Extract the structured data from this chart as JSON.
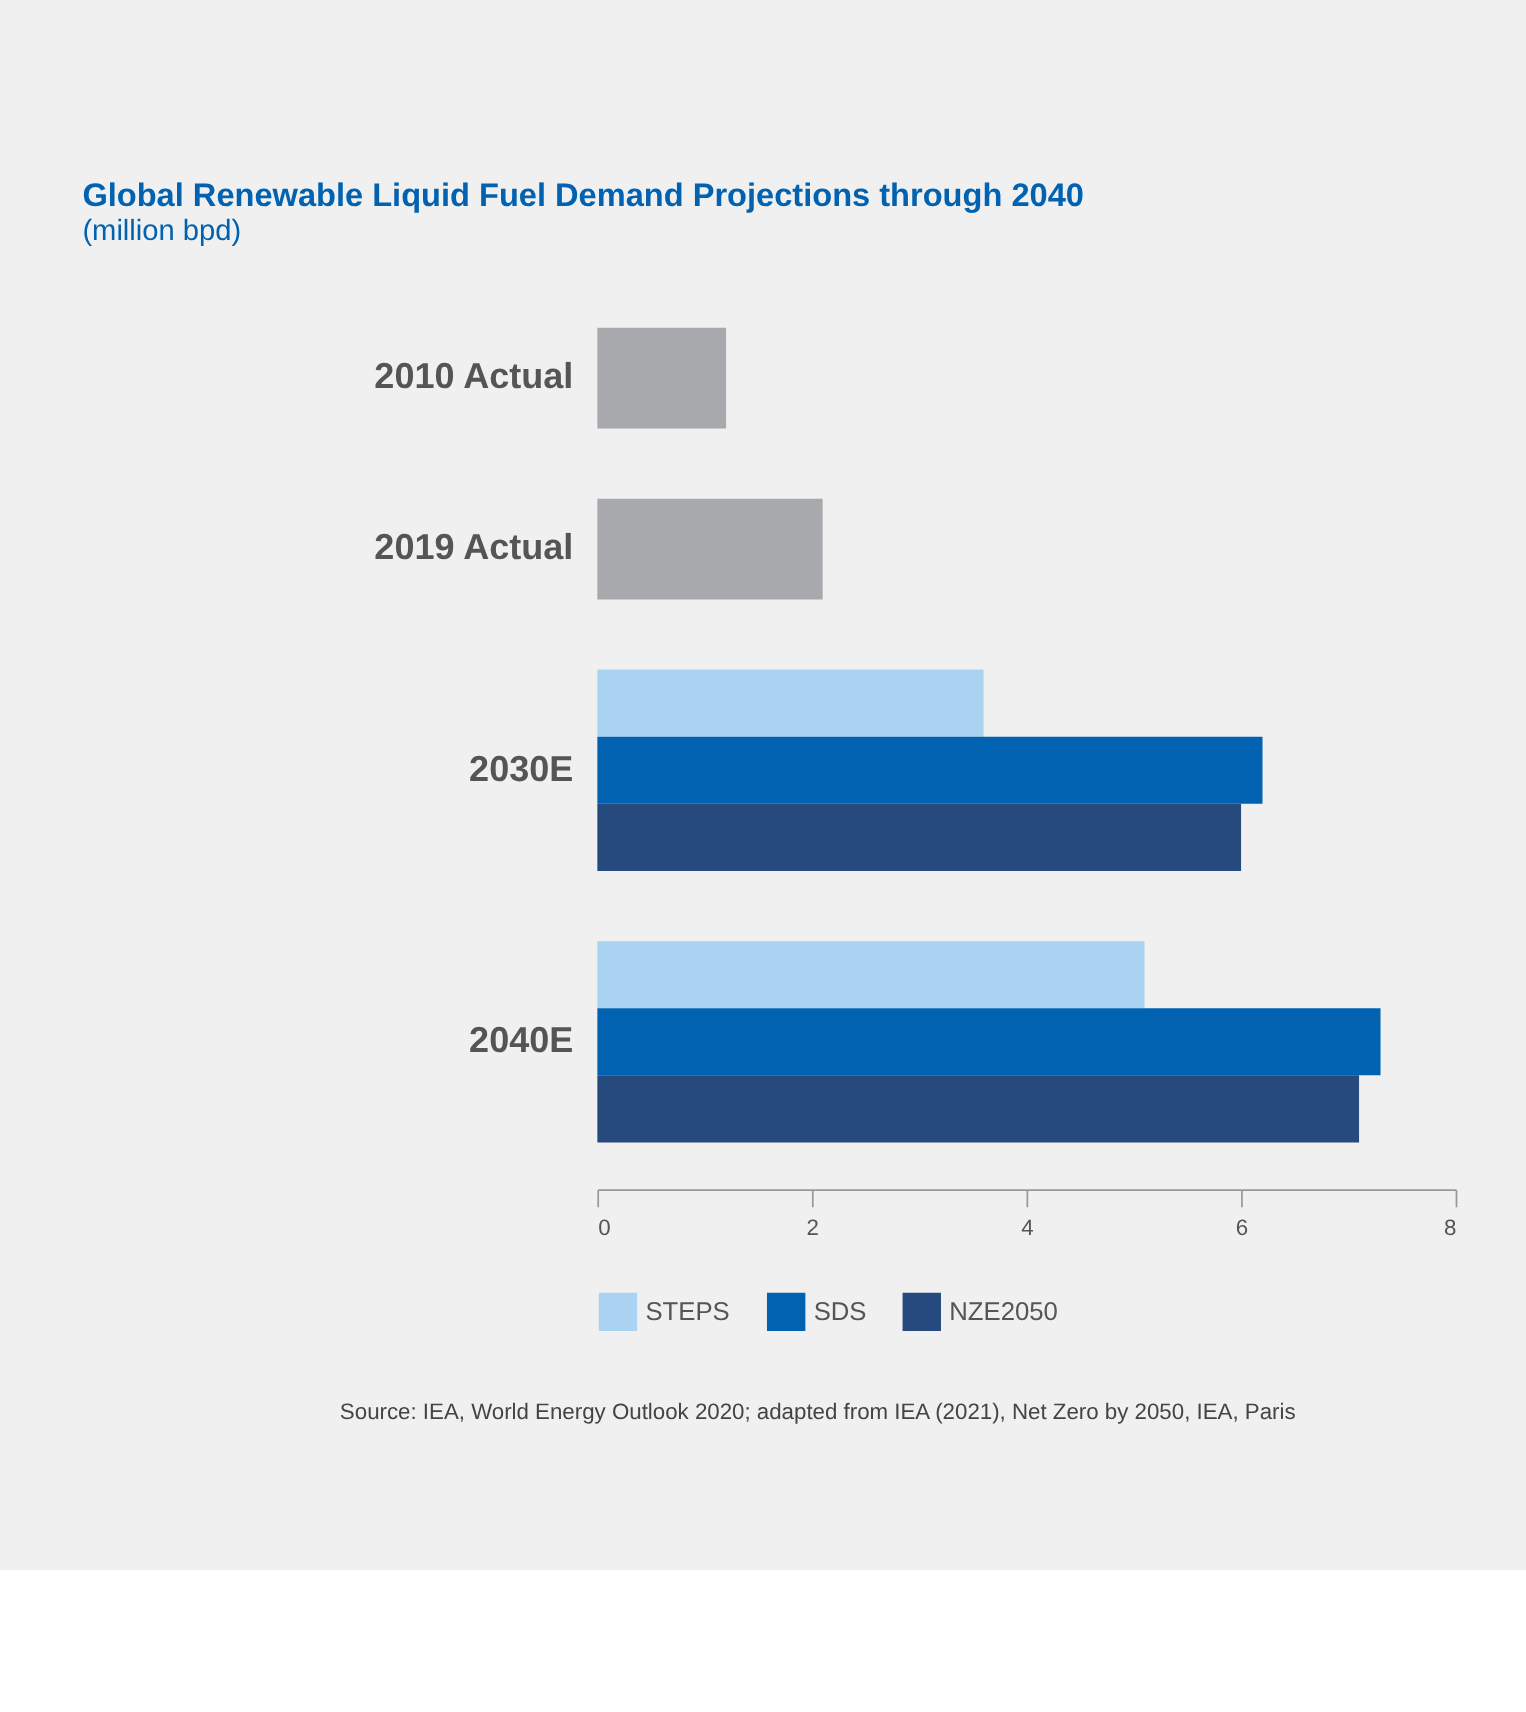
{
  "chart_data": {
    "type": "bar",
    "orientation": "horizontal",
    "title": "Global Renewable Liquid Fuel Demand Projections through 2040",
    "subtitle": "(million bpd)",
    "categories": [
      "2010 Actual",
      "2019 Actual",
      "2030E",
      "2040E"
    ],
    "series": [
      {
        "color": "#a7a9ac",
        "values": [
          1.2,
          2.1,
          null,
          null
        ]
      },
      {
        "name": "STEPS",
        "color": "#aad3f2",
        "values": [
          null,
          null,
          3.6,
          5.1
        ]
      },
      {
        "name": "SDS",
        "color": "#0062b0",
        "values": [
          null,
          null,
          6.2,
          7.3
        ]
      },
      {
        "name": "NZE2050",
        "color": "#264a7d",
        "values": [
          null,
          null,
          6.0,
          7.1
        ]
      }
    ],
    "xlim": [
      0,
      8
    ],
    "xticks": [
      0,
      2,
      4,
      6,
      8
    ],
    "grid": false,
    "legend": "bottom",
    "annotations": [
      "Source: IEA, World Energy Outlook 2020; adapted from IEA (2021), Net Zero by 2050, IEA, Paris"
    ]
  }
}
